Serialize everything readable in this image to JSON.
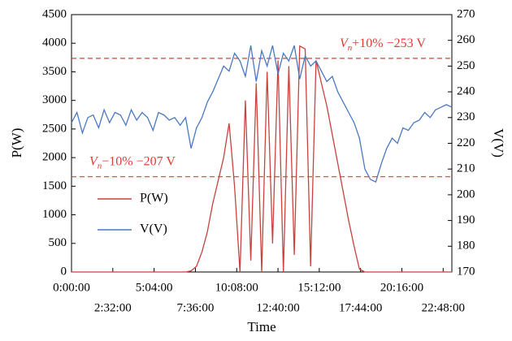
{
  "chart_data": {
    "type": "line",
    "xlabel": "Time",
    "ylabel": "P(W)",
    "y2label": "V(V)",
    "x": [
      0,
      20,
      40,
      60,
      80,
      100,
      120,
      140,
      160,
      180,
      200,
      220,
      240,
      260,
      280,
      300,
      320,
      340,
      360,
      380,
      400,
      420,
      440,
      460,
      480,
      500,
      520,
      540,
      560,
      580,
      600,
      620,
      640,
      660,
      680,
      700,
      720,
      740,
      760,
      780,
      800,
      820,
      840,
      860,
      880,
      900,
      920,
      940,
      960,
      980,
      1000,
      1020,
      1040,
      1060,
      1080,
      1100,
      1120,
      1140,
      1160,
      1180,
      1200,
      1220,
      1240,
      1260,
      1280,
      1300,
      1320,
      1340,
      1360,
      1380,
      1400
    ],
    "series": [
      {
        "name": "P(W)",
        "color": "#c8423e",
        "axis": "y",
        "values": [
          0,
          0,
          0,
          0,
          0,
          0,
          0,
          0,
          0,
          0,
          0,
          0,
          0,
          0,
          0,
          0,
          0,
          0,
          0,
          0,
          0,
          0,
          20,
          100,
          350,
          700,
          1200,
          1600,
          2000,
          2600,
          1500,
          0,
          3000,
          200,
          3300,
          0,
          3500,
          500,
          3700,
          0,
          3600,
          300,
          3950,
          3900,
          100,
          3700,
          3300,
          2900,
          2400,
          1900,
          1400,
          900,
          450,
          50,
          0,
          0,
          0,
          0,
          0,
          0,
          0,
          0,
          0,
          0,
          0,
          0,
          0,
          0,
          0,
          0,
          0
        ]
      },
      {
        "name": "V(V)",
        "color": "#4a78c2",
        "axis": "y2",
        "values": [
          228,
          232,
          224,
          230,
          231,
          226,
          233,
          228,
          232,
          231,
          227,
          233,
          229,
          232,
          230,
          225,
          232,
          231,
          229,
          230,
          227,
          230,
          218,
          226,
          230,
          236,
          240,
          245,
          250,
          248,
          255,
          252,
          246,
          258,
          244,
          256,
          250,
          258,
          247,
          255,
          252,
          258,
          245,
          254,
          250,
          252,
          248,
          244,
          246,
          240,
          236,
          232,
          228,
          222,
          210,
          206,
          205,
          212,
          218,
          222,
          220,
          226,
          225,
          228,
          229,
          232,
          230,
          233,
          234,
          235,
          234
        ]
      }
    ],
    "xlim": [
      0,
      1400
    ],
    "xticks": [
      {
        "value": 0,
        "label": "0:00:00"
      },
      {
        "value": 152,
        "label": "2:32:00"
      },
      {
        "value": 304,
        "label": "5:04:00"
      },
      {
        "value": 456,
        "label": "7:36:00"
      },
      {
        "value": 608,
        "label": "10:08:00"
      },
      {
        "value": 760,
        "label": "12:40:00"
      },
      {
        "value": 912,
        "label": "15:12:00"
      },
      {
        "value": 1064,
        "label": "17:44:00"
      },
      {
        "value": 1216,
        "label": "20:16:00"
      },
      {
        "value": 1368,
        "label": "22:48:00"
      }
    ],
    "ylim": [
      0,
      4500
    ],
    "yticks": [
      0,
      500,
      1000,
      1500,
      2000,
      2500,
      3000,
      3500,
      4000,
      4500
    ],
    "y2lim": [
      170,
      270
    ],
    "y2ticks": [
      170,
      180,
      190,
      200,
      210,
      220,
      230,
      240,
      250,
      260,
      270
    ],
    "reference_lines": [
      {
        "value": 253,
        "axis": "y2",
        "color": "#e03c31",
        "base": "V",
        "sub": "n",
        "rest": "+10% −253 V"
      },
      {
        "value": 207,
        "axis": "y2",
        "color": "#e03c31",
        "base": "V",
        "sub": "n",
        "rest": "−10% −207 V"
      }
    ],
    "legend": "left"
  }
}
